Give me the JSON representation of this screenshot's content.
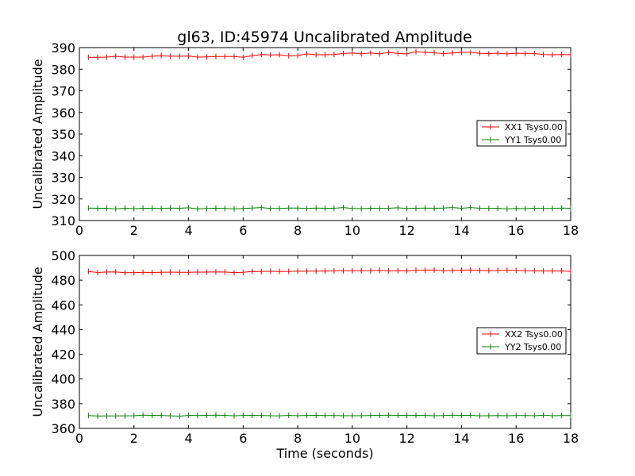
{
  "chart_data": [
    {
      "type": "line",
      "title": "gl63, ID:45974 Uncalibrated Amplitude",
      "xlabel": "",
      "ylabel": "Uncalibrated Amplitude",
      "xlim": [
        0,
        18
      ],
      "ylim": [
        310,
        390
      ],
      "xticks": [
        0,
        2,
        4,
        6,
        8,
        10,
        12,
        14,
        16,
        18
      ],
      "yticks": [
        310,
        320,
        330,
        340,
        350,
        360,
        370,
        380,
        390
      ],
      "legend": "center-right",
      "x": [
        0.33,
        0.67,
        1.0,
        1.33,
        1.67,
        2.0,
        2.33,
        2.67,
        3.0,
        3.33,
        3.67,
        4.0,
        4.33,
        4.67,
        5.0,
        5.33,
        5.67,
        6.0,
        6.33,
        6.67,
        7.0,
        7.33,
        7.67,
        8.0,
        8.33,
        8.67,
        9.0,
        9.33,
        9.67,
        10.0,
        10.33,
        10.67,
        11.0,
        11.33,
        11.67,
        12.0,
        12.33,
        12.67,
        13.0,
        13.33,
        13.67,
        14.0,
        14.33,
        14.67,
        15.0,
        15.33,
        15.67,
        16.0,
        16.33,
        16.67,
        17.0,
        17.33,
        17.67,
        18.0
      ],
      "series": [
        {
          "name": "XX1 Tsys0.00",
          "color": "#ff0000",
          "values": [
            385.5,
            385.5,
            385.6,
            386.0,
            385.6,
            385.6,
            385.6,
            386.0,
            386.3,
            386.0,
            386.0,
            386.1,
            385.6,
            385.7,
            385.9,
            385.9,
            385.9,
            385.5,
            386.3,
            386.8,
            386.6,
            386.7,
            386.2,
            386.3,
            387.1,
            386.7,
            386.7,
            386.8,
            387.3,
            387.5,
            387.1,
            387.5,
            387.1,
            387.8,
            387.3,
            387.1,
            388.1,
            387.8,
            387.6,
            387.2,
            387.5,
            387.8,
            387.8,
            387.4,
            387.2,
            387.4,
            387.1,
            387.4,
            387.3,
            387.3,
            386.8,
            386.7,
            386.8,
            386.7
          ]
        },
        {
          "name": "YY1 Tsys0.00",
          "color": "#008000",
          "values": [
            315.8,
            315.7,
            315.7,
            315.4,
            315.7,
            315.5,
            315.7,
            315.7,
            315.6,
            315.8,
            315.7,
            315.9,
            315.4,
            315.6,
            315.7,
            315.6,
            315.4,
            315.6,
            315.8,
            316.0,
            315.6,
            315.6,
            315.8,
            315.8,
            315.6,
            315.8,
            315.7,
            315.7,
            316.0,
            315.6,
            315.5,
            315.7,
            315.6,
            315.7,
            315.9,
            315.6,
            315.7,
            315.8,
            315.7,
            315.8,
            316.0,
            315.7,
            316.0,
            315.7,
            315.6,
            315.7,
            315.4,
            315.6,
            315.5,
            315.7,
            315.6,
            315.6,
            315.8,
            315.7
          ]
        }
      ]
    },
    {
      "type": "line",
      "title": "",
      "xlabel": "Time (seconds)",
      "ylabel": "Uncalibrated Amplitude",
      "xlim": [
        0,
        18
      ],
      "ylim": [
        360,
        500
      ],
      "xticks": [
        0,
        2,
        4,
        6,
        8,
        10,
        12,
        14,
        16,
        18
      ],
      "yticks": [
        360,
        380,
        400,
        420,
        440,
        460,
        480,
        500
      ],
      "legend": "center-right",
      "x": [
        0.33,
        0.67,
        1.0,
        1.33,
        1.67,
        2.0,
        2.33,
        2.67,
        3.0,
        3.33,
        3.67,
        4.0,
        4.33,
        4.67,
        5.0,
        5.33,
        5.67,
        6.0,
        6.33,
        6.67,
        7.0,
        7.33,
        7.67,
        8.0,
        8.33,
        8.67,
        9.0,
        9.33,
        9.67,
        10.0,
        10.33,
        10.67,
        11.0,
        11.33,
        11.67,
        12.0,
        12.33,
        12.67,
        13.0,
        13.33,
        13.67,
        14.0,
        14.33,
        14.67,
        15.0,
        15.33,
        15.67,
        16.0,
        16.33,
        16.67,
        17.0,
        17.33,
        17.67,
        18.0
      ],
      "series": [
        {
          "name": "XX2 Tsys0.00",
          "color": "#ff0000",
          "values": [
            487.0,
            486.2,
            486.6,
            486.7,
            486.0,
            486.0,
            486.4,
            486.2,
            486.4,
            486.5,
            486.4,
            486.3,
            486.5,
            486.5,
            486.7,
            486.6,
            486.1,
            486.3,
            487.1,
            487.0,
            487.2,
            487.0,
            487.1,
            487.2,
            487.2,
            487.3,
            487.3,
            487.5,
            487.6,
            487.6,
            487.6,
            487.6,
            487.9,
            487.5,
            487.6,
            487.5,
            488.0,
            488.1,
            488.2,
            487.7,
            487.8,
            488.1,
            488.2,
            487.9,
            487.7,
            487.9,
            488.0,
            487.9,
            487.6,
            487.5,
            487.4,
            487.4,
            487.5,
            487.1
          ]
        },
        {
          "name": "YY2 Tsys0.00",
          "color": "#008000",
          "values": [
            370.4,
            370.0,
            370.1,
            370.1,
            370.2,
            370.3,
            370.7,
            370.6,
            370.5,
            370.2,
            369.9,
            370.6,
            370.4,
            370.6,
            370.8,
            370.6,
            370.2,
            370.5,
            370.6,
            370.5,
            370.3,
            370.2,
            370.6,
            370.3,
            370.5,
            370.6,
            370.4,
            370.4,
            370.3,
            370.3,
            370.3,
            370.5,
            370.6,
            370.7,
            370.6,
            370.5,
            370.6,
            370.5,
            370.3,
            370.4,
            370.7,
            370.6,
            370.6,
            370.2,
            370.3,
            370.4,
            370.3,
            370.4,
            370.4,
            370.3,
            370.7,
            370.3,
            370.4,
            370.4
          ]
        }
      ]
    }
  ]
}
